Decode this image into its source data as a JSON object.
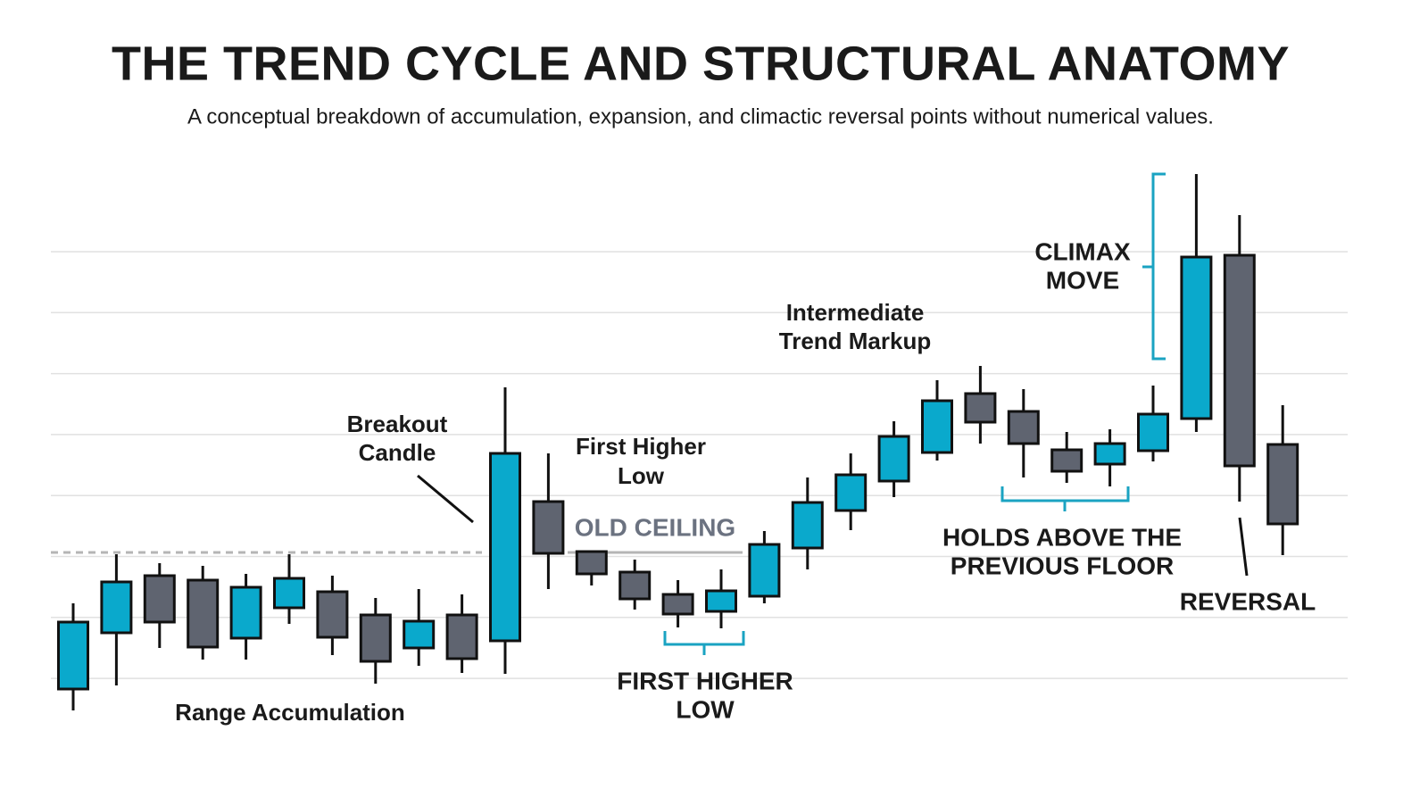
{
  "chart_data": {
    "type": "candlestick",
    "title": "THE TREND CYCLE AND STRUCTURAL ANATOMY",
    "subtitle": "A conceptual breakdown of accumulation, expansion, and climactic reversal points without numerical values.",
    "categories": [
      null,
      null,
      null,
      null,
      null,
      null,
      null,
      null,
      null,
      null,
      null,
      null,
      null,
      null,
      null,
      null,
      null,
      null,
      null,
      null,
      null,
      null,
      null,
      null,
      null,
      null,
      null,
      null,
      null
    ],
    "open": [
      2.8,
      9.1,
      15.5,
      15,
      8.5,
      11.9,
      13.7,
      11.1,
      7.4,
      11.1,
      8.2,
      23.8,
      18.2,
      15.9,
      13.4,
      11.5,
      13.2,
      18.6,
      22.8,
      26.1,
      29.3,
      35.9,
      33.9,
      29.6,
      28,
      29.5,
      33.1,
      51.4,
      30.2
    ],
    "high": [
      12.4,
      17.9,
      16.9,
      16.6,
      15.7,
      17.9,
      15.5,
      13,
      14,
      13.4,
      36.6,
      29.2,
      18.2,
      17.3,
      15,
      16.2,
      20.5,
      26.5,
      29.2,
      32.8,
      37.4,
      39,
      36.4,
      31.6,
      31.9,
      36.8,
      60.5,
      55.9,
      34.6
    ],
    "low": [
      0.4,
      3.2,
      7.4,
      6.1,
      6.1,
      10.1,
      6.6,
      3.4,
      5.4,
      4.6,
      4.5,
      14,
      14.4,
      11.7,
      9.7,
      9.6,
      12.4,
      16.2,
      20.6,
      24.3,
      28.4,
      30.3,
      26.5,
      25.9,
      25.5,
      28.3,
      31.6,
      23.8,
      17.8
    ],
    "close": [
      10.3,
      14.8,
      10.3,
      7.5,
      14.2,
      15.2,
      8.6,
      5.9,
      10.4,
      6.2,
      29.2,
      18,
      15.7,
      12.9,
      11.2,
      13.8,
      19,
      23.7,
      26.8,
      31.1,
      35.1,
      32.7,
      30.3,
      27.2,
      30.3,
      33.6,
      51.2,
      27.8,
      21.3
    ],
    "up_color": "#0aa9cc",
    "down_color": "#5f6470",
    "ylim": [
      0,
      62
    ],
    "grid": true,
    "old_ceiling": {
      "value": 18.1,
      "label": "OLD CEILING"
    },
    "annotations": [
      [
        "Range Accumulation"
      ],
      [
        "Breakout",
        "Candle"
      ],
      [
        "First Higher",
        "Low"
      ],
      [
        "Intermediate",
        "Trend Markup"
      ],
      [
        "CLIMAX",
        "MOVE"
      ],
      [
        "FIRST HIGHER",
        "LOW"
      ],
      [
        "HOLDS ABOVE THE",
        "PREVIOUS FLOOR"
      ],
      [
        "REVERSAL"
      ]
    ]
  }
}
